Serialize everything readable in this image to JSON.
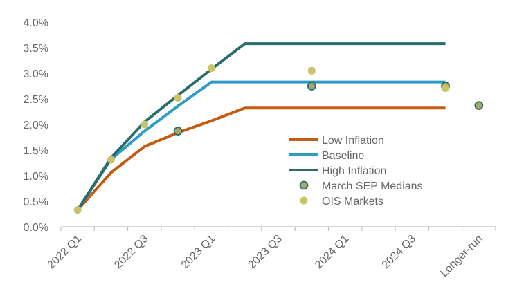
{
  "chart_data": {
    "type": "line",
    "categories": [
      "2022 Q1",
      "2022 Q2",
      "2022 Q3",
      "2022 Q4",
      "2023 Q1",
      "2023 Q2",
      "2023 Q3",
      "2023 Q4",
      "2024 Q1",
      "2024 Q2",
      "2024 Q3",
      "2024 Q4",
      "Longer-run"
    ],
    "x_tick_labels": [
      "2022 Q1",
      "2022 Q3",
      "2023 Q1",
      "2023 Q3",
      "2024 Q1",
      "2024 Q3",
      "Longer-run"
    ],
    "y_tick_labels": [
      "0.0%",
      "0.5%",
      "1.0%",
      "1.5%",
      "2.0%",
      "2.5%",
      "3.0%",
      "3.5%",
      "4.0%"
    ],
    "ylim": [
      0,
      4.0
    ],
    "y_step": 0.5,
    "grid": false,
    "legend_position": "center-right",
    "series": [
      {
        "name": "Low Inflation",
        "kind": "line",
        "color": "#C55A11",
        "values": [
          0.33,
          1.06,
          1.57,
          1.84,
          2.07,
          2.32,
          2.32,
          2.32,
          2.32,
          2.32,
          2.32,
          2.32,
          null
        ]
      },
      {
        "name": "Baseline",
        "kind": "line",
        "color": "#2E9BC6",
        "values": [
          0.33,
          1.32,
          1.87,
          2.36,
          2.83,
          2.83,
          2.83,
          2.83,
          2.83,
          2.83,
          2.83,
          2.83,
          null
        ]
      },
      {
        "name": "High Inflation",
        "kind": "line",
        "color": "#2A6B6E",
        "values": [
          0.33,
          1.35,
          2.05,
          2.57,
          3.08,
          3.58,
          3.58,
          3.58,
          3.58,
          3.58,
          3.58,
          3.58,
          null
        ]
      },
      {
        "name": "March SEP Medians",
        "kind": "marker",
        "color": "#A6A86A",
        "stroke": "#2A6B6E",
        "points": [
          {
            "x": "2022 Q4",
            "y": 1.87
          },
          {
            "x": "2023 Q4",
            "y": 2.75
          },
          {
            "x": "2024 Q4",
            "y": 2.75
          },
          {
            "x": "Longer-run",
            "y": 2.37
          }
        ]
      },
      {
        "name": "OIS Markets",
        "kind": "marker",
        "color": "#C9C46A",
        "points": [
          {
            "x": "2022 Q1",
            "y": 0.33
          },
          {
            "x": "2022 Q2",
            "y": 1.31
          },
          {
            "x": "2022 Q3",
            "y": 2.0
          },
          {
            "x": "2022 Q4",
            "y": 2.52
          },
          {
            "x": "2023 Q1",
            "y": 3.1
          },
          {
            "x": "2023 Q4",
            "y": 3.05
          },
          {
            "x": "2024 Q4",
            "y": 2.71
          }
        ]
      }
    ]
  }
}
